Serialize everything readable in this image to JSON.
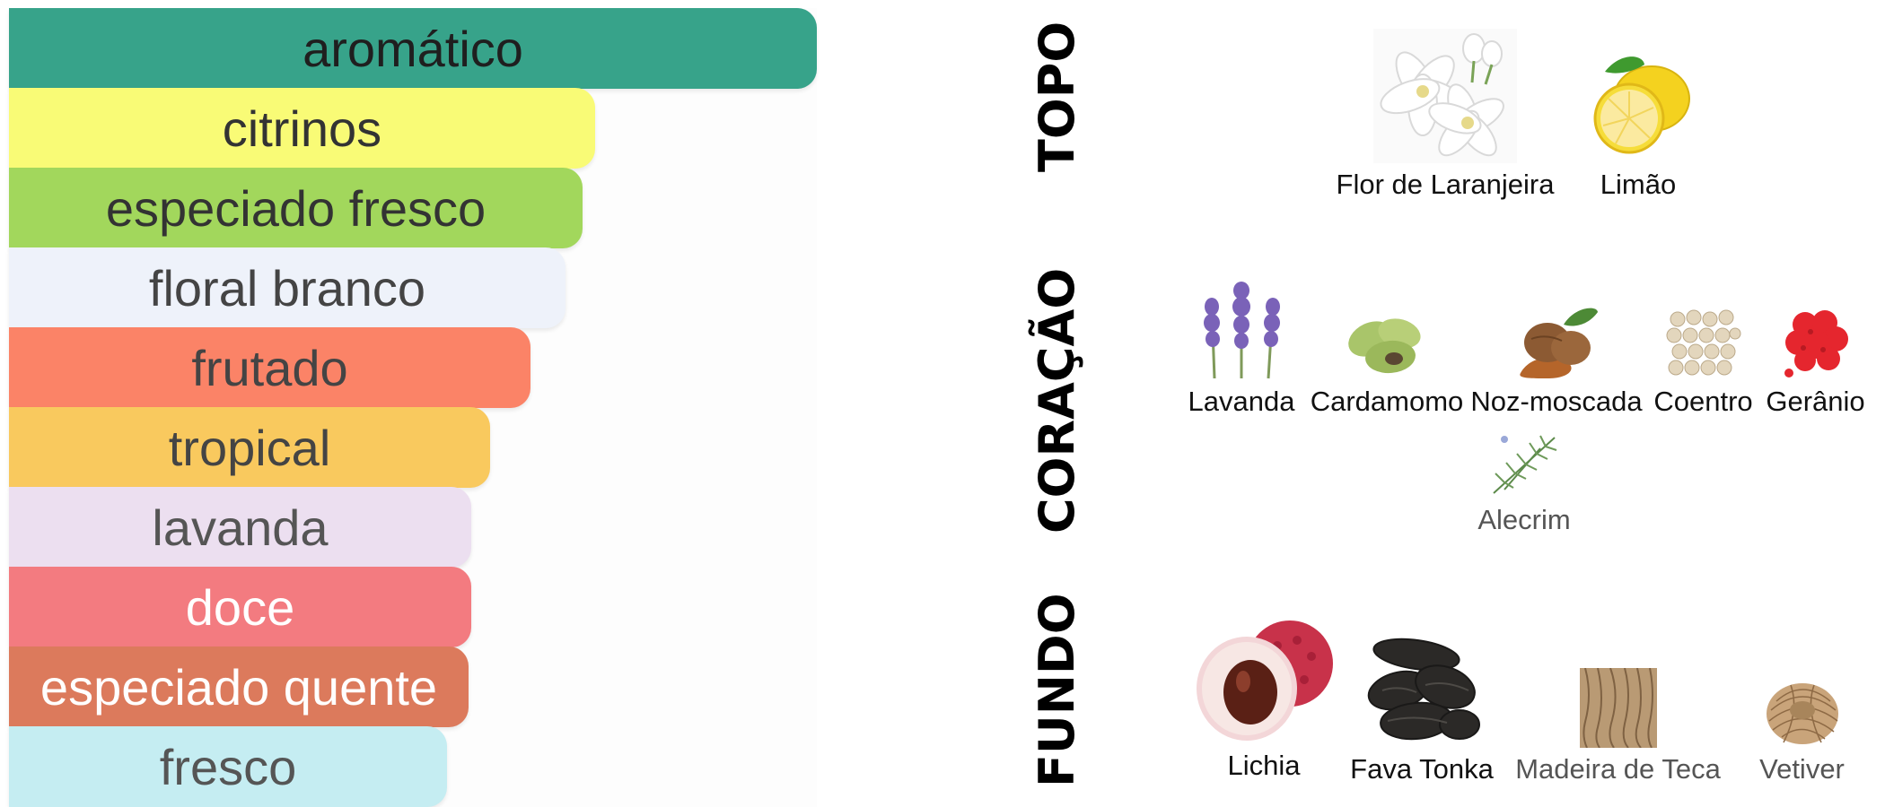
{
  "accords": [
    {
      "label": "aromático",
      "color": "#37a38a",
      "text_color": "#1f1f1f",
      "strength": 1.0
    },
    {
      "label": "citrinos",
      "color": "#f9fb76",
      "text_color": "#333333",
      "strength": 0.73
    },
    {
      "label": "especiado fresco",
      "color": "#a2d75c",
      "text_color": "#333333",
      "strength": 0.71
    },
    {
      "label": "floral branco",
      "color": "#eef2fa",
      "text_color": "#444444",
      "strength": 0.69
    },
    {
      "label": "frutado",
      "color": "#fb8367",
      "text_color": "#444444",
      "strength": 0.645
    },
    {
      "label": "tropical",
      "color": "#f9c95e",
      "text_color": "#444444",
      "strength": 0.595
    },
    {
      "label": "lavanda",
      "color": "#ecdff0",
      "text_color": "#555555",
      "strength": 0.57
    },
    {
      "label": "doce",
      "color": "#f37b80",
      "text_color": "#ffffff",
      "strength": 0.57
    },
    {
      "label": "especiado quente",
      "color": "#dc7a5c",
      "text_color": "#ffffff",
      "strength": 0.567
    },
    {
      "label": "fresco",
      "color": "#c5edf2",
      "text_color": "#555555",
      "strength": 0.54
    }
  ],
  "pyramid": {
    "top": {
      "label": "TOPO",
      "notes": [
        {
          "name": "Flor de Laranjeira",
          "icon": "orange-blossom-icon"
        },
        {
          "name": "Limão",
          "icon": "lemon-icon"
        }
      ]
    },
    "heart": {
      "label": "CORAÇÃO",
      "notes": [
        {
          "name": "Lavanda",
          "icon": "lavender-icon"
        },
        {
          "name": "Cardamomo",
          "icon": "cardamom-icon"
        },
        {
          "name": "Noz-moscada",
          "icon": "nutmeg-icon"
        },
        {
          "name": "Coentro",
          "icon": "coriander-icon"
        },
        {
          "name": "Gerânio",
          "icon": "geranium-icon"
        },
        {
          "name": "Alecrim",
          "icon": "rosemary-icon"
        }
      ]
    },
    "base": {
      "label": "FUNDO",
      "notes": [
        {
          "name": "Lichia",
          "icon": "lychee-icon"
        },
        {
          "name": "Fava Tonka",
          "icon": "tonka-bean-icon"
        },
        {
          "name": "Madeira de Teca",
          "icon": "teak-wood-icon"
        },
        {
          "name": "Vetiver",
          "icon": "vetiver-icon"
        }
      ]
    }
  }
}
